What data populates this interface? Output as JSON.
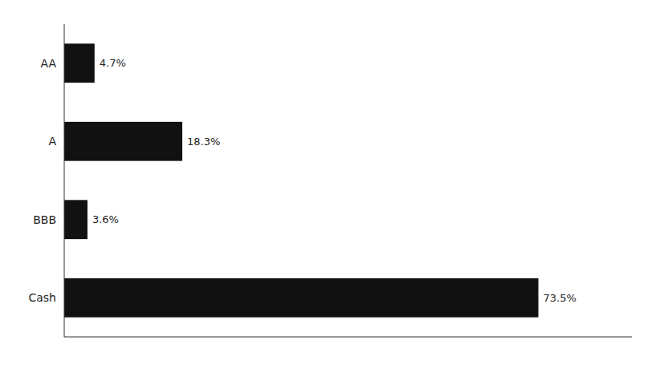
{
  "chart_data": {
    "type": "bar",
    "orientation": "horizontal",
    "categories": [
      "AA",
      "A",
      "BBB",
      "Cash"
    ],
    "values": [
      4.7,
      18.3,
      3.6,
      73.5
    ],
    "value_labels": [
      "4.7%",
      "18.3%",
      "3.6%",
      "73.5%"
    ],
    "data_labels": true,
    "color": "#111111",
    "xlim": [
      0,
      88
    ],
    "xticks": [],
    "tick_labels": "y",
    "grid": false
  }
}
